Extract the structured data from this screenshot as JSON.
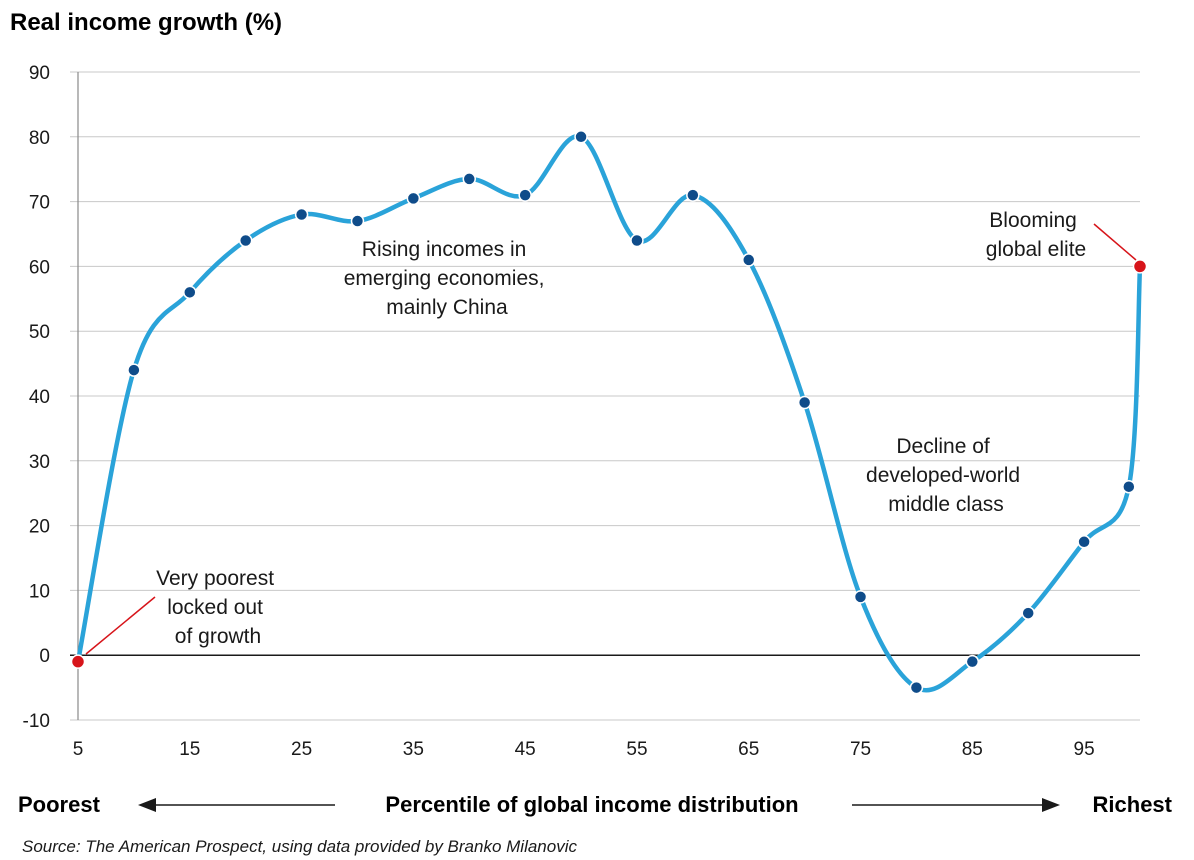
{
  "chart_data": {
    "type": "line",
    "title": "Real income growth (%)",
    "xlabel": "Percentile of global income distribution",
    "x_left_label": "Poorest",
    "x_right_label": "Richest",
    "source": "Source: The American Prospect, using data provided by Branko Milanovic",
    "xlim": [
      5,
      100
    ],
    "ylim": [
      -10,
      90
    ],
    "x_ticks": [
      5,
      15,
      25,
      35,
      45,
      55,
      65,
      75,
      85,
      95
    ],
    "y_ticks": [
      -10,
      0,
      10,
      20,
      30,
      40,
      50,
      60,
      70,
      80,
      90
    ],
    "grid": true,
    "line_color": "#2aa3d9",
    "point_color": "#0f4c8a",
    "highlight_color": "#d7141a",
    "series": [
      {
        "x": [
          5,
          10,
          15,
          20,
          25,
          30,
          35,
          40,
          45,
          50,
          55,
          60,
          65,
          70,
          75,
          80,
          85,
          90,
          95,
          99,
          100
        ],
        "y": [
          -1,
          44,
          56,
          64,
          68,
          67,
          70.5,
          73.5,
          71,
          80,
          64,
          71,
          61,
          39,
          9,
          -5,
          -1,
          6.5,
          17.5,
          26,
          60
        ],
        "highlight_x": [
          5,
          100
        ]
      }
    ],
    "annotations": [
      {
        "id": "poorest",
        "lines": [
          "Very poorest",
          "locked out",
          "of growth"
        ]
      },
      {
        "id": "emerging",
        "lines": [
          "Rising incomes in",
          "emerging economies,",
          "mainly China"
        ]
      },
      {
        "id": "decline",
        "lines": [
          "Decline of",
          "developed-world",
          "middle class"
        ]
      },
      {
        "id": "elite",
        "lines": [
          "Blooming",
          "global elite"
        ]
      }
    ]
  }
}
